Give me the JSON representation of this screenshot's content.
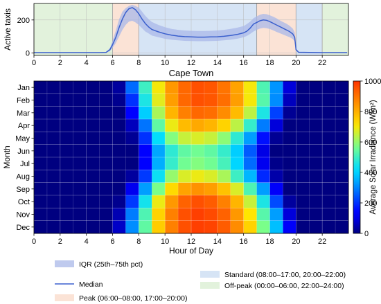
{
  "chart_data": [
    {
      "type": "area",
      "ylabel": "Active taxis",
      "xlim": [
        0,
        24
      ],
      "ylim": [
        -15,
        300
      ],
      "x_ticks": [
        0,
        2,
        4,
        6,
        8,
        10,
        12,
        14,
        16,
        18,
        20,
        22
      ],
      "y_ticks": [
        0,
        200
      ],
      "tariff_bands": [
        {
          "band": "offpeak",
          "from": 0,
          "to": 6
        },
        {
          "band": "peak",
          "from": 6,
          "to": 8
        },
        {
          "band": "standard",
          "from": 8,
          "to": 17
        },
        {
          "band": "peak",
          "from": 17,
          "to": 20
        },
        {
          "band": "standard",
          "from": 20,
          "to": 22
        },
        {
          "band": "offpeak",
          "from": 22,
          "to": 24
        }
      ],
      "x": [
        0,
        1,
        2,
        3,
        4,
        5,
        5.5,
        5.8,
        6,
        6.25,
        6.5,
        6.75,
        7,
        7.25,
        7.5,
        7.75,
        8,
        8.25,
        8.5,
        8.75,
        9,
        9.5,
        10,
        10.5,
        11,
        11.5,
        12,
        12.5,
        13,
        13.5,
        14,
        14.5,
        15,
        15.5,
        16,
        16.25,
        16.5,
        16.75,
        17,
        17.25,
        17.5,
        17.75,
        18,
        18.25,
        18.5,
        18.75,
        19,
        19.25,
        19.5,
        19.75,
        19.9,
        20,
        20.2,
        21,
        22,
        23,
        23.9
      ],
      "series": [
        {
          "name": "Median",
          "values": [
            2,
            2,
            2,
            2,
            2,
            2,
            3,
            20,
            50,
            95,
            155,
            205,
            245,
            268,
            275,
            262,
            238,
            205,
            178,
            158,
            142,
            128,
            116,
            108,
            102,
            99,
            97,
            96,
            96,
            97,
            98,
            101,
            106,
            112,
            122,
            132,
            150,
            175,
            185,
            195,
            200,
            198,
            190,
            180,
            170,
            160,
            150,
            140,
            130,
            115,
            95,
            20,
            4,
            3,
            2,
            2,
            2
          ]
        },
        {
          "name": "IQR_low",
          "values": [
            1,
            1,
            1,
            1,
            1,
            1,
            2,
            10,
            30,
            60,
            100,
            140,
            170,
            190,
            195,
            185,
            170,
            150,
            130,
            118,
            105,
            95,
            86,
            80,
            76,
            73,
            72,
            71,
            71,
            72,
            73,
            76,
            80,
            86,
            95,
            103,
            115,
            130,
            140,
            148,
            152,
            150,
            145,
            137,
            128,
            120,
            112,
            104,
            96,
            85,
            70,
            12,
            3,
            2,
            1,
            1,
            1
          ]
        },
        {
          "name": "IQR_high",
          "values": [
            4,
            4,
            4,
            4,
            4,
            4,
            5,
            30,
            75,
            135,
            205,
            250,
            272,
            285,
            292,
            285,
            275,
            250,
            225,
            205,
            188,
            170,
            156,
            146,
            140,
            136,
            134,
            133,
            133,
            134,
            136,
            140,
            146,
            153,
            163,
            175,
            190,
            210,
            222,
            232,
            237,
            235,
            228,
            220,
            210,
            198,
            188,
            178,
            165,
            148,
            125,
            28,
            6,
            5,
            4,
            4,
            4
          ]
        }
      ]
    },
    {
      "type": "heatmap",
      "title": "Cape Town",
      "xlabel": "Hour of Day",
      "ylabel": "Month",
      "x_ticks": [
        0,
        2,
        4,
        6,
        8,
        10,
        12,
        14,
        16,
        18,
        20,
        22
      ],
      "months": [
        "Jan",
        "Feb",
        "Mar",
        "Apr",
        "May",
        "Jun",
        "Jul",
        "Aug",
        "Sep",
        "Oct",
        "Nov",
        "Dec"
      ],
      "hours": [
        0,
        1,
        2,
        3,
        4,
        5,
        6,
        7,
        8,
        9,
        10,
        11,
        12,
        13,
        14,
        15,
        16,
        17,
        18,
        19,
        20,
        21,
        22,
        23
      ],
      "values": [
        [
          0,
          0,
          0,
          0,
          0,
          0,
          30,
          270,
          500,
          700,
          840,
          920,
          960,
          950,
          900,
          820,
          700,
          520,
          320,
          90,
          0,
          0,
          0,
          0
        ],
        [
          0,
          0,
          0,
          0,
          0,
          0,
          15,
          200,
          460,
          680,
          830,
          920,
          960,
          950,
          910,
          830,
          700,
          530,
          310,
          60,
          0,
          0,
          0,
          0
        ],
        [
          0,
          0,
          0,
          0,
          0,
          0,
          0,
          130,
          390,
          620,
          790,
          880,
          920,
          910,
          860,
          780,
          640,
          460,
          220,
          20,
          0,
          0,
          0,
          0
        ],
        [
          0,
          0,
          0,
          0,
          0,
          0,
          0,
          60,
          280,
          540,
          690,
          780,
          810,
          790,
          740,
          640,
          490,
          290,
          90,
          0,
          0,
          0,
          0,
          0
        ],
        [
          0,
          0,
          0,
          0,
          0,
          0,
          0,
          20,
          200,
          430,
          580,
          650,
          670,
          650,
          590,
          480,
          330,
          160,
          20,
          0,
          0,
          0,
          0,
          0
        ],
        [
          0,
          0,
          0,
          0,
          0,
          0,
          0,
          0,
          130,
          340,
          480,
          540,
          560,
          540,
          490,
          390,
          250,
          100,
          0,
          0,
          0,
          0,
          0,
          0
        ],
        [
          0,
          0,
          0,
          0,
          0,
          0,
          0,
          0,
          140,
          350,
          490,
          560,
          580,
          560,
          510,
          410,
          270,
          110,
          10,
          0,
          0,
          0,
          0,
          0
        ],
        [
          0,
          0,
          0,
          0,
          0,
          0,
          0,
          30,
          210,
          440,
          600,
          670,
          690,
          670,
          620,
          500,
          360,
          190,
          40,
          0,
          0,
          0,
          0,
          0
        ],
        [
          0,
          0,
          0,
          0,
          0,
          0,
          0,
          110,
          330,
          570,
          730,
          820,
          850,
          830,
          770,
          670,
          520,
          330,
          120,
          0,
          0,
          0,
          0,
          0
        ],
        [
          0,
          0,
          0,
          0,
          0,
          0,
          15,
          210,
          450,
          690,
          840,
          930,
          960,
          940,
          880,
          790,
          650,
          460,
          230,
          30,
          0,
          0,
          0,
          0
        ],
        [
          0,
          0,
          0,
          0,
          0,
          0,
          50,
          290,
          520,
          740,
          880,
          960,
          990,
          970,
          930,
          840,
          710,
          530,
          330,
          90,
          0,
          0,
          0,
          0
        ],
        [
          0,
          0,
          0,
          0,
          0,
          0,
          70,
          310,
          540,
          750,
          880,
          960,
          990,
          980,
          940,
          860,
          740,
          570,
          370,
          120,
          0,
          0,
          0,
          0
        ]
      ],
      "colorbar": {
        "label": "Average Solar Irradiance (W/m²)",
        "range": [
          0,
          1000
        ],
        "ticks": [
          0,
          200,
          400,
          600,
          800,
          1000
        ],
        "colormap": "jet"
      }
    }
  ],
  "legend": {
    "iqr": "IQR (25th–75th pct)",
    "median": "Median",
    "peak": "Peak (06:00–08:00, 17:00–20:00)",
    "standard": "Standard (08:00–17:00, 20:00–22:00)",
    "offpeak": "Off-peak (00:00–06:00, 22:00–24:00)"
  },
  "colors": {
    "median": "#3a5fcd",
    "iqr": "#aab8e8",
    "peak": "#fbe3d6",
    "standard": "#d6e4f5",
    "offpeak": "#e2f2dc"
  }
}
